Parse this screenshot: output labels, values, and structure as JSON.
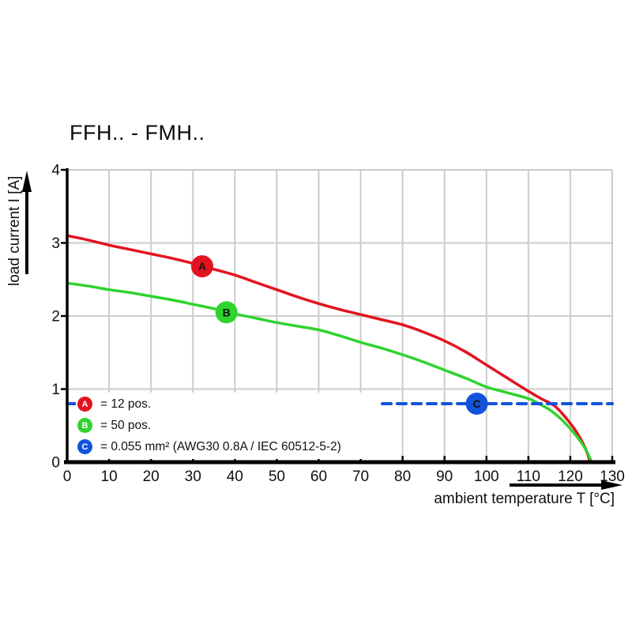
{
  "title": "FFH.. - FMH..",
  "colors": {
    "series_a": "#e2131f",
    "series_b": "#2ed32e",
    "series_c": "#1353db",
    "grid": "#cccccc",
    "axis": "#000000",
    "text": "#111111",
    "marker_letter": "#ffffff"
  },
  "axes": {
    "x": {
      "label": "ambient temperature T [°C]",
      "min": 0,
      "max": 130
    },
    "y": {
      "label": "load current I [A]",
      "min": 0,
      "max": 4
    }
  },
  "legend": {
    "items": [
      {
        "letter": "A",
        "label": "= 12 pos."
      },
      {
        "letter": "B",
        "label": "= 50 pos."
      },
      {
        "letter": "C",
        "label": "= 0.055 mm² (AWG30 0.8A / IEC 60512-5-2)"
      }
    ]
  },
  "chart_data": {
    "type": "line",
    "title": "FFH.. - FMH..",
    "xlabel": "ambient temperature T [°C]",
    "ylabel": "load current I [A]",
    "xlim": [
      0,
      130
    ],
    "ylim": [
      0,
      4
    ],
    "x_ticks": [
      0,
      10,
      20,
      30,
      40,
      50,
      60,
      70,
      80,
      90,
      100,
      110,
      120,
      130
    ],
    "y_ticks": [
      0,
      1,
      2,
      3,
      4
    ],
    "grid": true,
    "legend_position": "lower-left-inside",
    "series": [
      {
        "id": "a",
        "name": "A = 12 pos.",
        "color": "#e2131f",
        "style": "solid",
        "marker": {
          "letter": "A",
          "x": 32.2,
          "y": 2.68
        },
        "points": [
          [
            0,
            3.1
          ],
          [
            5,
            3.04
          ],
          [
            10,
            2.97
          ],
          [
            15,
            2.91
          ],
          [
            20,
            2.85
          ],
          [
            25,
            2.79
          ],
          [
            30,
            2.72
          ],
          [
            35,
            2.64
          ],
          [
            40,
            2.56
          ],
          [
            45,
            2.46
          ],
          [
            50,
            2.36
          ],
          [
            55,
            2.26
          ],
          [
            60,
            2.17
          ],
          [
            65,
            2.09
          ],
          [
            70,
            2.02
          ],
          [
            75,
            1.95
          ],
          [
            80,
            1.88
          ],
          [
            85,
            1.78
          ],
          [
            90,
            1.66
          ],
          [
            95,
            1.51
          ],
          [
            100,
            1.33
          ],
          [
            105,
            1.15
          ],
          [
            110,
            0.97
          ],
          [
            113,
            0.87
          ],
          [
            116,
            0.78
          ],
          [
            118,
            0.67
          ],
          [
            120,
            0.53
          ],
          [
            121.5,
            0.41
          ],
          [
            123,
            0.26
          ],
          [
            124,
            0.13
          ],
          [
            124.6,
            0.02
          ]
        ]
      },
      {
        "id": "b",
        "name": "B = 50 pos.",
        "color": "#2ed32e",
        "style": "solid",
        "marker": {
          "letter": "B",
          "x": 38,
          "y": 2.05
        },
        "points": [
          [
            0,
            2.45
          ],
          [
            5,
            2.41
          ],
          [
            10,
            2.36
          ],
          [
            15,
            2.32
          ],
          [
            20,
            2.27
          ],
          [
            25,
            2.22
          ],
          [
            30,
            2.16
          ],
          [
            35,
            2.1
          ],
          [
            40,
            2.03
          ],
          [
            45,
            1.97
          ],
          [
            50,
            1.91
          ],
          [
            55,
            1.86
          ],
          [
            60,
            1.81
          ],
          [
            65,
            1.73
          ],
          [
            70,
            1.64
          ],
          [
            75,
            1.56
          ],
          [
            80,
            1.47
          ],
          [
            85,
            1.37
          ],
          [
            90,
            1.26
          ],
          [
            95,
            1.15
          ],
          [
            100,
            1.03
          ],
          [
            105,
            0.95
          ],
          [
            110,
            0.87
          ],
          [
            112.5,
            0.8
          ],
          [
            115,
            0.72
          ],
          [
            117,
            0.63
          ],
          [
            119,
            0.52
          ],
          [
            121,
            0.39
          ],
          [
            122.5,
            0.28
          ],
          [
            124,
            0.14
          ],
          [
            125,
            0.01
          ]
        ]
      },
      {
        "id": "c",
        "name": "C = 0.055 mm² (AWG30 0.8A / IEC 60512-5-2)",
        "color": "#1353db",
        "style": "dashed",
        "marker": {
          "letter": "C",
          "x": 97.7,
          "y": 0.8
        },
        "points": [
          [
            0,
            0.8
          ],
          [
            130,
            0.8
          ]
        ]
      }
    ]
  }
}
